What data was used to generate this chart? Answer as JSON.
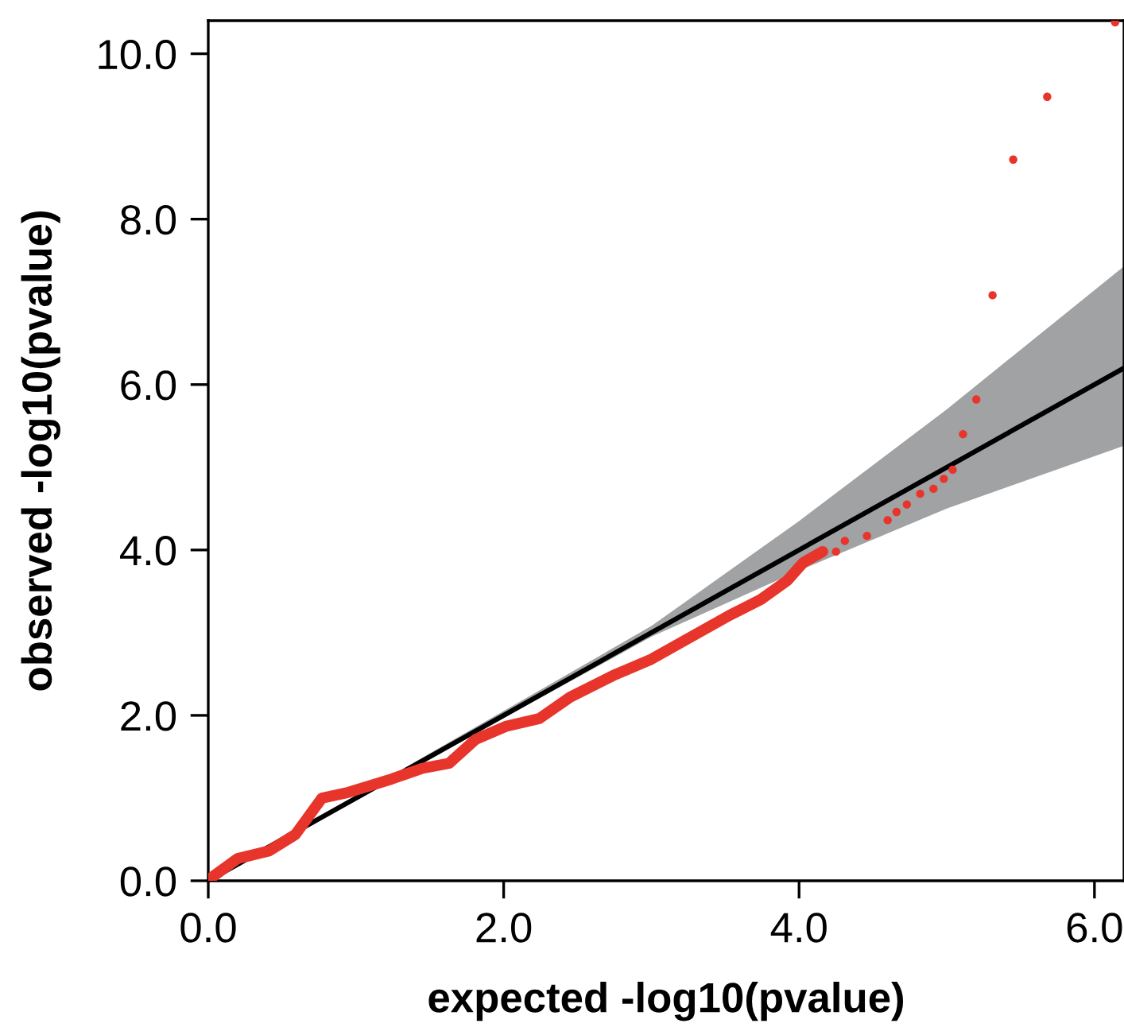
{
  "chart_data": {
    "type": "scatter",
    "xlabel": "expected -log10(pvalue)",
    "ylabel": "observed -log10(pvalue)",
    "xlim": [
      0,
      6.2
    ],
    "ylim": [
      0,
      10.4
    ],
    "xticks": [
      {
        "value": 0,
        "label": "0.0"
      },
      {
        "value": 2,
        "label": "2.0"
      },
      {
        "value": 4,
        "label": "4.0"
      },
      {
        "value": 6,
        "label": "6.0"
      }
    ],
    "yticks": [
      {
        "value": 0,
        "label": "0.0"
      },
      {
        "value": 2,
        "label": "2.0"
      },
      {
        "value": 4,
        "label": "4.0"
      },
      {
        "value": 6,
        "label": "6.0"
      },
      {
        "value": 8,
        "label": "8.0"
      },
      {
        "value": 10,
        "label": "10.0"
      }
    ],
    "grid": false,
    "legend": false,
    "series": [
      {
        "type": "line",
        "color": "#000000",
        "x": [
          0,
          3,
          4,
          5,
          6.2
        ],
        "values": [
          0,
          3,
          4,
          5,
          6.2
        ],
        "lower": [
          0,
          2.95,
          3.75,
          4.5,
          5.26
        ],
        "upper": [
          0,
          3.08,
          4.35,
          5.7,
          7.43
        ]
      },
      {
        "type": "line",
        "color": "#e8352b",
        "x": [
          0,
          0.2,
          0.41,
          0.59,
          0.77,
          0.95,
          1.24,
          1.45,
          1.63,
          1.81,
          2.02,
          2.24,
          2.45,
          2.74,
          2.99,
          3.28,
          3.53,
          3.74,
          3.92,
          4.03,
          4.16
        ],
        "values": [
          0.01,
          0.27,
          0.36,
          0.56,
          1.0,
          1.07,
          1.23,
          1.36,
          1.42,
          1.71,
          1.87,
          1.96,
          2.22,
          2.48,
          2.67,
          2.96,
          3.21,
          3.4,
          3.63,
          3.85,
          3.98
        ]
      },
      {
        "marker": "circle",
        "color": "#e8352b",
        "x": [
          4.25,
          4.31,
          4.46,
          4.6,
          4.66,
          4.73,
          4.82,
          4.91,
          4.98,
          5.04,
          5.11,
          5.2,
          5.31,
          5.45,
          5.68,
          6.14
        ],
        "values": [
          3.98,
          4.11,
          4.17,
          4.36,
          4.46,
          4.55,
          4.68,
          4.74,
          4.86,
          4.97,
          5.4,
          5.82,
          7.08,
          8.72,
          9.48,
          10.38
        ]
      }
    ]
  }
}
